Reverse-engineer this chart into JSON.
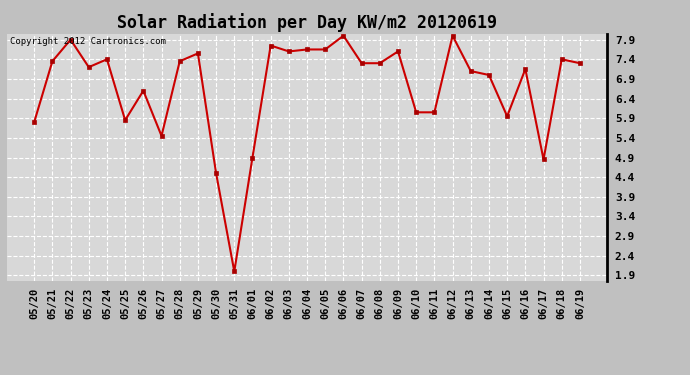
{
  "title": "Solar Radiation per Day KW/m2 20120619",
  "copyright": "Copyright 2012 Cartronics.com",
  "x_labels": [
    "05/20",
    "05/21",
    "05/22",
    "05/23",
    "05/24",
    "05/25",
    "05/26",
    "05/27",
    "05/28",
    "05/29",
    "05/30",
    "05/31",
    "06/01",
    "06/02",
    "06/03",
    "06/04",
    "06/05",
    "06/06",
    "06/07",
    "06/08",
    "06/09",
    "06/10",
    "06/11",
    "06/12",
    "06/13",
    "06/14",
    "06/15",
    "06/16",
    "06/17",
    "06/18",
    "06/19"
  ],
  "y_data": [
    5.8,
    7.35,
    7.9,
    7.2,
    7.4,
    5.85,
    6.6,
    5.45,
    7.35,
    7.55,
    4.5,
    2.0,
    4.9,
    7.75,
    7.6,
    7.65,
    7.65,
    8.0,
    7.3,
    7.3,
    7.6,
    6.05,
    6.05,
    8.0,
    7.1,
    7.0,
    5.95,
    7.15,
    4.85,
    7.4,
    7.3
  ],
  "y_ticks": [
    1.9,
    2.4,
    2.9,
    3.4,
    3.9,
    4.4,
    4.9,
    5.4,
    5.9,
    6.4,
    6.9,
    7.4,
    7.9
  ],
  "ylim_min": 1.75,
  "ylim_max": 8.05,
  "line_color": "#cc0000",
  "marker_color": "#aa0000",
  "fig_bg_color": "#c0c0c0",
  "plot_bg_color": "#d8d8d8",
  "grid_color": "#ffffff",
  "title_fontsize": 12,
  "copyright_fontsize": 6.5,
  "tick_fontsize": 7.5,
  "ytick_fontsize": 8
}
